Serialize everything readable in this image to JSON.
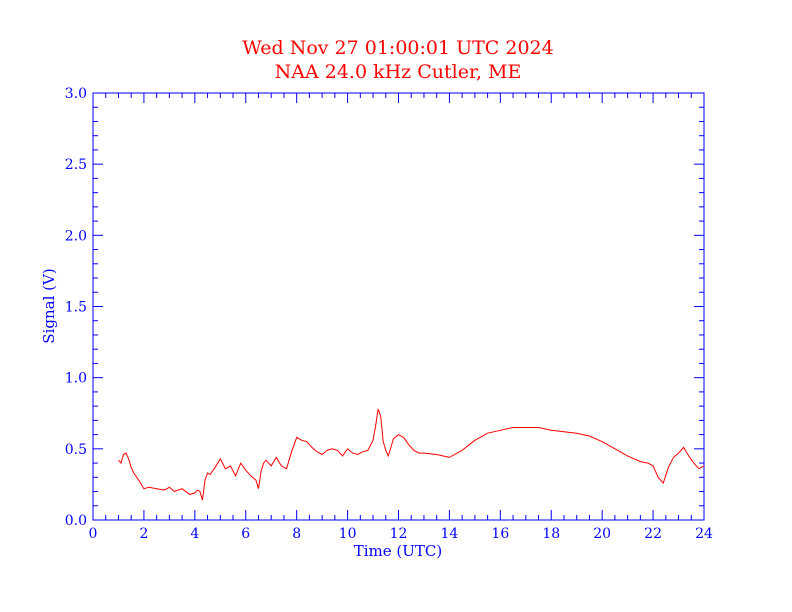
{
  "colors": {
    "title": "#ff0000",
    "axes": "#0000ff",
    "series": "#ff0000",
    "background": "#ffffff"
  },
  "chart_data": {
    "type": "line",
    "title": "Wed Nov 27 01:00:01 UTC 2024",
    "subtitle": "NAA 24.0 kHz Cutler, ME",
    "xlabel": "Time (UTC)",
    "ylabel": "Signal (V)",
    "xlim": [
      0,
      24
    ],
    "ylim": [
      0,
      3
    ],
    "xticks": [
      "0",
      "2",
      "4",
      "6",
      "8",
      "10",
      "12",
      "14",
      "16",
      "18",
      "20",
      "22",
      "24"
    ],
    "yticks": [
      "0.0",
      "0.5",
      "1.0",
      "1.5",
      "2.0",
      "2.5",
      "3.0"
    ],
    "grid": false,
    "series": [
      {
        "x": [
          1.0,
          1.1,
          1.2,
          1.3,
          1.4,
          1.5,
          1.6,
          1.8,
          2.0,
          2.2,
          2.5,
          2.8,
          3.0,
          3.2,
          3.5,
          3.8,
          4.0,
          4.1,
          4.2,
          4.3,
          4.4,
          4.5,
          4.6,
          4.8,
          5.0,
          5.2,
          5.4,
          5.6,
          5.8,
          6.0,
          6.2,
          6.4,
          6.5,
          6.6,
          6.7,
          6.8,
          7.0,
          7.2,
          7.4,
          7.6,
          7.8,
          8.0,
          8.2,
          8.4,
          8.6,
          8.8,
          9.0,
          9.2,
          9.4,
          9.6,
          9.8,
          10.0,
          10.2,
          10.4,
          10.6,
          10.8,
          11.0,
          11.1,
          11.2,
          11.3,
          11.4,
          11.5,
          11.6,
          11.7,
          11.8,
          12.0,
          12.2,
          12.4,
          12.6,
          12.8,
          13.0,
          13.5,
          14.0,
          14.5,
          15.0,
          15.5,
          16.0,
          16.5,
          17.0,
          17.5,
          18.0,
          18.5,
          19.0,
          19.5,
          20.0,
          20.5,
          21.0,
          21.5,
          21.8,
          22.0,
          22.2,
          22.4,
          22.6,
          22.8,
          23.0,
          23.2,
          23.4,
          23.6,
          23.8,
          24.0
        ],
        "y": [
          0.42,
          0.4,
          0.46,
          0.47,
          0.43,
          0.37,
          0.33,
          0.28,
          0.22,
          0.23,
          0.22,
          0.21,
          0.23,
          0.2,
          0.22,
          0.18,
          0.19,
          0.21,
          0.2,
          0.14,
          0.28,
          0.33,
          0.32,
          0.37,
          0.43,
          0.36,
          0.38,
          0.31,
          0.4,
          0.35,
          0.31,
          0.28,
          0.22,
          0.34,
          0.4,
          0.42,
          0.38,
          0.44,
          0.38,
          0.36,
          0.48,
          0.58,
          0.56,
          0.55,
          0.51,
          0.48,
          0.46,
          0.49,
          0.5,
          0.49,
          0.45,
          0.5,
          0.47,
          0.46,
          0.48,
          0.49,
          0.56,
          0.66,
          0.78,
          0.73,
          0.55,
          0.49,
          0.45,
          0.51,
          0.57,
          0.6,
          0.58,
          0.53,
          0.49,
          0.47,
          0.47,
          0.46,
          0.44,
          0.49,
          0.56,
          0.61,
          0.63,
          0.65,
          0.65,
          0.65,
          0.63,
          0.62,
          0.61,
          0.59,
          0.55,
          0.5,
          0.45,
          0.41,
          0.4,
          0.38,
          0.3,
          0.26,
          0.37,
          0.44,
          0.47,
          0.51,
          0.45,
          0.4,
          0.36,
          0.38
        ]
      }
    ]
  }
}
